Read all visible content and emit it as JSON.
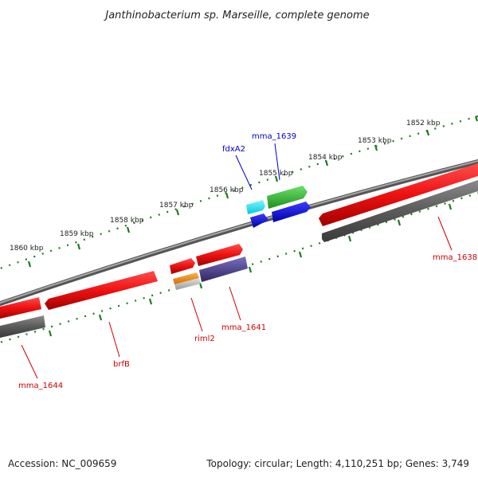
{
  "title": "Janthinobacterium sp. Marseille, complete genome",
  "footer": {
    "accession": "Accession: NC_009659",
    "topology": "Topology: circular; Length: 4,110,251 bp; Genes: 3,749"
  },
  "ticks": [
    {
      "label": "1852 kbp"
    },
    {
      "label": "1853 kbp"
    },
    {
      "label": "1854 kbp"
    },
    {
      "label": "1855 kbp"
    },
    {
      "label": "1856 kbp"
    },
    {
      "label": "1857 kbp"
    },
    {
      "label": "1858 kbp"
    },
    {
      "label": "1859 kbp"
    },
    {
      "label": "1860 kbp"
    }
  ],
  "gene_labels": [
    {
      "text": "fdxA2",
      "color": "#0000cc"
    },
    {
      "text": "mma_1639",
      "color": "#0000cc"
    },
    {
      "text": "mma_1638",
      "color": "#cc0000"
    },
    {
      "text": "mma_1641",
      "color": "#cc0000"
    },
    {
      "text": "riml2",
      "color": "#cc0000"
    },
    {
      "text": "brfB",
      "color": "#cc0000"
    },
    {
      "text": "mma_1644",
      "color": "#cc0000"
    }
  ],
  "colors": {
    "backbone": "#7a7a7a",
    "tick": "#1e7a1e",
    "cds_forward": "#ee1111",
    "cds_gray": "#5a5a5a",
    "gene_cyan": "#00e5ee",
    "gene_green": "#2eb82e",
    "gene_blue": "#0000e0",
    "gene_orange": "#f08c00",
    "gene_purple": "#4a3f8a"
  }
}
